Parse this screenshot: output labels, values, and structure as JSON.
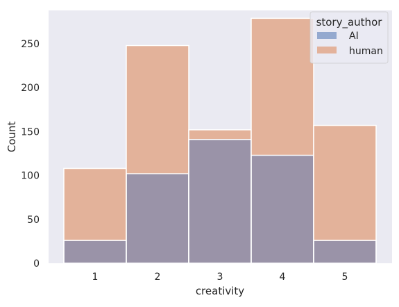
{
  "chart_data": {
    "type": "bar",
    "style": "overlaid histogram",
    "xlabel": "creativity",
    "ylabel": "Count",
    "categories": [
      "1",
      "2",
      "3",
      "4",
      "5"
    ],
    "ylim": [
      0,
      288
    ],
    "yticks": [
      0,
      50,
      100,
      150,
      200,
      250
    ],
    "grid": false,
    "legend_position": "top-right",
    "legend_title": "story_author",
    "series": [
      {
        "name": "AI",
        "values": [
          26,
          102,
          141,
          123,
          26
        ],
        "color": "#4c72b0"
      },
      {
        "name": "human",
        "values": [
          108,
          248,
          152,
          279,
          157
        ],
        "color": "#dd8452"
      }
    ]
  },
  "colors": {
    "plot_background": "#eaeaf2",
    "overlap": "#9a93a8"
  }
}
